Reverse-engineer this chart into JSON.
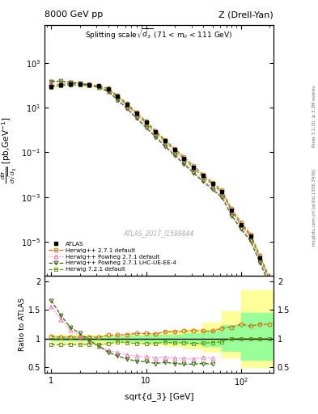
{
  "title_left": "8000 GeV pp",
  "title_right": "Z (Drell-Yan)",
  "plot_title": "Splitting scale $\\sqrt{d_3}$ (71 < m$_{ll}$ < 111 GeV)",
  "ylabel_main": "$\\frac{d\\sigma}{d\\mathrm{sqrt}(\\overline{d_3})}$ [pb,GeV$^{-1}$]",
  "ylabel_ratio": "Ratio to ATLAS",
  "xlabel": "sqrt{d_3} [GeV]",
  "watermark": "ATLAS_2017_I1589844",
  "right_label": "mcplots.cern.ch [arXiv:1306.3436]",
  "right_label2": "Rivet 3.1.10, ≥ 3.3M events",
  "atlas_x": [
    1.0,
    1.26,
    1.58,
    2.0,
    2.51,
    3.16,
    3.98,
    5.01,
    6.31,
    7.94,
    10.0,
    12.6,
    15.8,
    20.0,
    25.1,
    31.6,
    39.8,
    50.1,
    63.1,
    79.4,
    100.0,
    125.9,
    158.5,
    199.5
  ],
  "atlas_y": [
    90,
    108,
    115,
    112,
    107,
    92,
    68,
    32,
    14,
    5.5,
    2.2,
    0.85,
    0.33,
    0.13,
    0.055,
    0.022,
    0.009,
    0.004,
    0.0017,
    0.00025,
    6e-05,
    1.8e-05,
    2e-06,
    2e-07
  ],
  "hw271_x": [
    1.0,
    1.26,
    1.58,
    2.0,
    2.51,
    3.16,
    3.98,
    5.01,
    6.31,
    7.94,
    10.0,
    12.6,
    15.8,
    20.0,
    25.1,
    31.6,
    39.8,
    50.1,
    63.1,
    79.4,
    100.0,
    125.9,
    158.5,
    199.5
  ],
  "hw271_y": [
    94,
    110,
    118,
    114,
    110,
    94,
    72,
    34,
    15,
    6.0,
    2.4,
    0.92,
    0.37,
    0.145,
    0.062,
    0.025,
    0.0102,
    0.0045,
    0.002,
    0.0003,
    7.5e-05,
    2.2e-05,
    2.5e-06,
    2.5e-07
  ],
  "pw271_x": [
    1.0,
    1.26,
    1.58,
    2.0,
    2.51,
    3.16,
    3.98,
    5.01,
    6.31,
    7.94,
    10.0,
    12.6,
    15.8,
    20.0,
    25.1,
    31.6,
    39.8,
    50.1,
    63.1,
    79.4,
    100.0,
    125.9,
    158.5,
    199.5
  ],
  "pw271_y": [
    140,
    145,
    132,
    118,
    102,
    80,
    54,
    24,
    10,
    3.8,
    1.5,
    0.56,
    0.22,
    0.085,
    0.036,
    0.014,
    0.006,
    0.0026,
    0.00115,
    0.00018,
    4.5e-05,
    1.3e-05,
    1.5e-06,
    1.5e-07
  ],
  "pw271lhc_x": [
    1.0,
    1.26,
    1.58,
    2.0,
    2.51,
    3.16,
    3.98,
    5.01,
    6.31,
    7.94,
    10.0,
    12.6,
    15.8,
    20.0,
    25.1,
    31.6,
    39.8,
    50.1,
    63.1,
    79.4,
    100.0,
    125.9,
    158.5,
    199.5
  ],
  "pw271lhc_y": [
    150,
    152,
    138,
    122,
    104,
    80,
    52,
    22,
    9,
    3.3,
    1.3,
    0.48,
    0.19,
    0.073,
    0.03,
    0.012,
    0.005,
    0.0022,
    0.00098,
    0.00015,
    3.8e-05,
    1.1e-05,
    1.2e-06,
    1.2e-07
  ],
  "hw721_x": [
    1.0,
    1.26,
    1.58,
    2.0,
    2.51,
    3.16,
    3.98,
    5.01,
    6.31,
    7.94,
    10.0,
    12.6,
    15.8,
    20.0,
    25.1,
    31.6,
    39.8,
    50.1,
    63.1,
    79.4,
    100.0,
    125.9,
    158.5,
    199.5
  ],
  "hw721_y": [
    80,
    96,
    104,
    100,
    96,
    82,
    62,
    30,
    13,
    5.0,
    2.0,
    0.77,
    0.31,
    0.12,
    0.051,
    0.02,
    0.0083,
    0.0037,
    0.0016,
    0.00025,
    6e-05,
    1.8e-05,
    2e-06,
    2e-07
  ],
  "ratio_hw271_x": [
    1.0,
    1.26,
    1.58,
    2.0,
    2.51,
    3.16,
    3.98,
    5.01,
    6.31,
    7.94,
    10.0,
    12.6,
    15.8,
    20.0,
    25.1,
    31.6,
    39.8,
    50.1,
    63.1,
    79.4,
    100.0,
    125.9,
    158.5,
    199.5
  ],
  "ratio_hw271_y": [
    1.04,
    1.02,
    1.03,
    1.02,
    1.03,
    1.02,
    1.06,
    1.06,
    1.07,
    1.09,
    1.09,
    1.08,
    1.12,
    1.12,
    1.13,
    1.14,
    1.13,
    1.13,
    1.18,
    1.2,
    1.25,
    1.22,
    1.25,
    1.25
  ],
  "ratio_pw271_x": [
    1.0,
    1.26,
    1.58,
    2.0,
    2.51,
    3.16,
    3.98,
    5.01,
    6.31,
    7.94,
    10.0,
    12.6,
    15.8,
    20.0,
    25.1,
    31.6,
    39.8,
    50.1
  ],
  "ratio_pw271_y": [
    1.56,
    1.34,
    1.15,
    1.05,
    0.95,
    0.87,
    0.79,
    0.75,
    0.71,
    0.69,
    0.68,
    0.66,
    0.67,
    0.65,
    0.65,
    0.64,
    0.67,
    0.65
  ],
  "ratio_pw271lhc_x": [
    1.0,
    1.26,
    1.58,
    2.0,
    2.51,
    3.16,
    3.98,
    5.01,
    6.31,
    7.94,
    10.0,
    12.6,
    15.8,
    20.0,
    25.1,
    31.6,
    39.8,
    50.1
  ],
  "ratio_pw271lhc_y": [
    1.67,
    1.41,
    1.2,
    1.09,
    0.97,
    0.87,
    0.76,
    0.69,
    0.64,
    0.6,
    0.59,
    0.56,
    0.58,
    0.56,
    0.55,
    0.55,
    0.56,
    0.55
  ],
  "ratio_hw721_x": [
    1.0,
    1.26,
    1.58,
    2.0,
    2.51,
    3.16,
    3.98,
    5.01,
    6.31,
    7.94,
    10.0,
    12.6,
    15.8,
    20.0,
    25.1,
    31.6,
    39.8,
    50.1,
    63.1,
    79.4,
    100.0,
    125.9,
    158.5,
    199.5
  ],
  "ratio_hw721_y": [
    0.89,
    0.89,
    0.9,
    0.89,
    0.9,
    0.89,
    0.91,
    0.94,
    0.93,
    0.91,
    0.91,
    0.91,
    0.94,
    0.92,
    0.93,
    0.91,
    0.92,
    0.93,
    0.94,
    1.0,
    1.0,
    1.0,
    1.0,
    1.0
  ],
  "band_yellow_x": [
    1.0,
    3.98,
    6.31,
    10.0,
    15.8,
    25.1,
    39.8,
    63.1,
    100.0,
    220.0
  ],
  "band_yellow_lo": [
    0.93,
    0.93,
    0.92,
    0.9,
    0.87,
    0.83,
    0.77,
    0.67,
    0.5,
    0.5
  ],
  "band_yellow_hi": [
    1.07,
    1.07,
    1.08,
    1.1,
    1.13,
    1.17,
    1.28,
    1.48,
    1.85,
    1.85
  ],
  "band_green_x": [
    1.0,
    3.98,
    6.31,
    10.0,
    15.8,
    25.1,
    39.8,
    63.1,
    100.0,
    220.0
  ],
  "band_green_lo": [
    0.96,
    0.96,
    0.95,
    0.94,
    0.93,
    0.91,
    0.87,
    0.78,
    0.63,
    0.63
  ],
  "band_green_hi": [
    1.04,
    1.04,
    1.05,
    1.06,
    1.07,
    1.09,
    1.13,
    1.24,
    1.45,
    1.45
  ],
  "color_atlas": "#000000",
  "color_hw271": "#cc6600",
  "color_pw271": "#ff69b4",
  "color_pw271lhc": "#336600",
  "color_hw721": "#669900",
  "color_yellow_band": "#ffff99",
  "color_green_band": "#99ff99",
  "xlim": [
    0.85,
    220
  ],
  "ylim_main": [
    3e-07,
    50000.0
  ],
  "ylim_ratio": [
    0.4,
    2.1
  ],
  "ratio_yticks": [
    0.5,
    1.0,
    1.5,
    2.0
  ],
  "ratio_yticklabels": [
    "0.5",
    "1",
    "1.5",
    "2"
  ]
}
